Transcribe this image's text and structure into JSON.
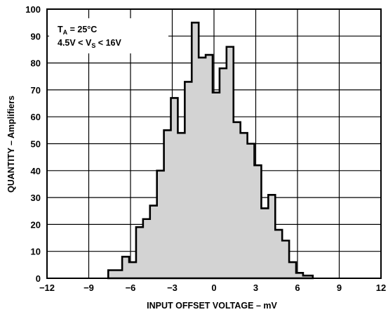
{
  "chart_data": {
    "type": "bar",
    "xlabel": "INPUT OFFSET VOLTAGE – mV",
    "ylabel": "QUANTITY – Amplifiers",
    "xlim": [
      -12,
      12
    ],
    "ylim": [
      0,
      100
    ],
    "xticks": [
      "−12",
      "−9",
      "−6",
      "−3",
      "0",
      "3",
      "6",
      "9",
      "12"
    ],
    "yticks": [
      "0",
      "10",
      "20",
      "30",
      "40",
      "50",
      "60",
      "70",
      "80",
      "90",
      "100"
    ],
    "grid": true,
    "fill_color": "#d3d3d3",
    "outline_color": "#000000",
    "annotation": {
      "line1": {
        "t": "T",
        "sub": "A",
        "rest": " = 25°C"
      },
      "line2": {
        "pre": "4.5V < V",
        "sub": "S",
        "rest": " < 16V"
      }
    },
    "bins": [
      {
        "x0": -7.6,
        "x1": -6.6,
        "value": 3
      },
      {
        "x0": -6.6,
        "x1": -6.1,
        "value": 8
      },
      {
        "x0": -6.1,
        "x1": -5.6,
        "value": 6
      },
      {
        "x0": -5.6,
        "x1": -5.1,
        "value": 19
      },
      {
        "x0": -5.1,
        "x1": -4.6,
        "value": 22
      },
      {
        "x0": -4.6,
        "x1": -4.1,
        "value": 27
      },
      {
        "x0": -4.1,
        "x1": -3.6,
        "value": 40
      },
      {
        "x0": -3.6,
        "x1": -3.1,
        "value": 55
      },
      {
        "x0": -3.1,
        "x1": -2.6,
        "value": 67
      },
      {
        "x0": -2.6,
        "x1": -2.1,
        "value": 54
      },
      {
        "x0": -2.1,
        "x1": -1.6,
        "value": 73
      },
      {
        "x0": -1.6,
        "x1": -1.1,
        "value": 95
      },
      {
        "x0": -1.1,
        "x1": -0.6,
        "value": 82
      },
      {
        "x0": -0.6,
        "x1": -0.1,
        "value": 83
      },
      {
        "x0": -0.1,
        "x1": 0.4,
        "value": 69
      },
      {
        "x0": 0.4,
        "x1": 0.9,
        "value": 78
      },
      {
        "x0": 0.9,
        "x1": 1.4,
        "value": 86
      },
      {
        "x0": 1.4,
        "x1": 1.9,
        "value": 58
      },
      {
        "x0": 1.9,
        "x1": 2.4,
        "value": 54
      },
      {
        "x0": 2.4,
        "x1": 2.9,
        "value": 50
      },
      {
        "x0": 2.9,
        "x1": 3.4,
        "value": 42
      },
      {
        "x0": 3.4,
        "x1": 3.9,
        "value": 26
      },
      {
        "x0": 3.9,
        "x1": 4.4,
        "value": 31
      },
      {
        "x0": 4.4,
        "x1": 4.9,
        "value": 18
      },
      {
        "x0": 4.9,
        "x1": 5.4,
        "value": 14
      },
      {
        "x0": 5.4,
        "x1": 5.9,
        "value": 6
      },
      {
        "x0": 5.9,
        "x1": 6.4,
        "value": 2
      },
      {
        "x0": 6.4,
        "x1": 7.1,
        "value": 1
      }
    ]
  }
}
